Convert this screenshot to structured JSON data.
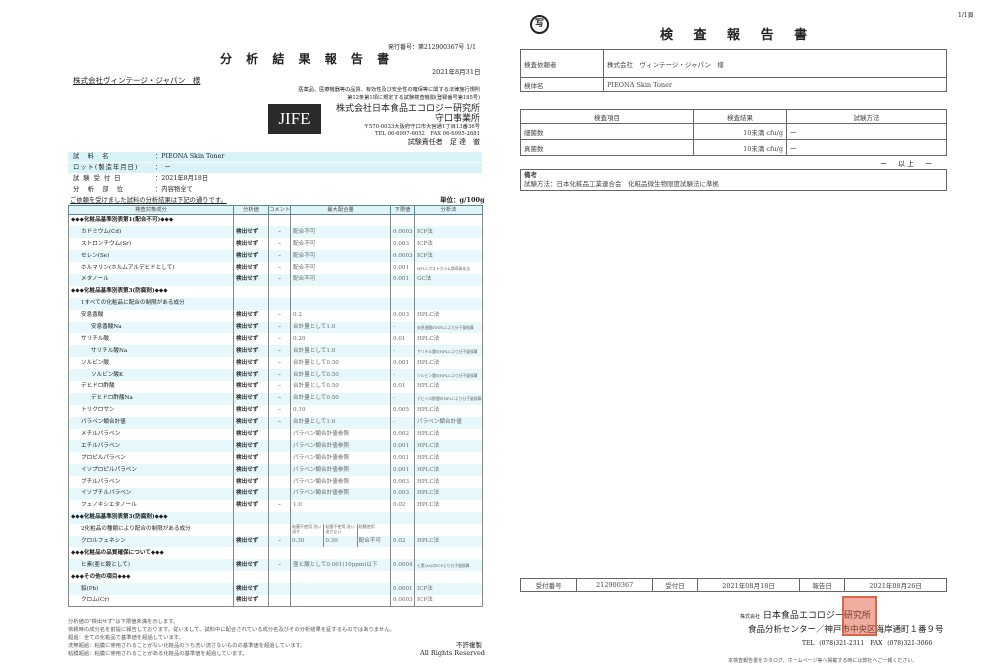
{
  "left": {
    "issue_no": "発行番号：第212900367号 1/1",
    "title": "分 析 結 果 報 告 書",
    "date": "2021年8月31日",
    "client": "株式会社ヴィンテージ・ジャパン　様",
    "law_line1": "医薬品、医療機器等の品質、有効性及び安全性の確保等に関する法律施行規則",
    "law_line2": "第12条第1項に規定する試験検査機関(登録番号第185号)",
    "logo_text": "JIFE",
    "lab_name": "株式会社日本食品エコロジー研究所",
    "lab_office": "守口事業所",
    "lab_address": "〒570-0033大阪府守口市大宮通1丁目13番36号",
    "lab_tel": "TEL 06-6997-6052　FAX 06-6995-2681",
    "lab_manager": "試験責任者　足 達　徹",
    "info": [
      {
        "key": "試　料　名",
        "value": "：PIEONA Skin Toner"
      },
      {
        "key": "ロット(製造年月日)",
        "value": "：　ー"
      },
      {
        "key": "試 験 受 付 日",
        "value": "：2021年8月18日"
      },
      {
        "key": "分　析　部　位",
        "value": "：内容物全て"
      }
    ],
    "intro": "ご依頼を受けました試料の分析結果は下記の通りです。",
    "unit": "単位：g/100g",
    "headers": [
      "検査対象成分",
      "分析値",
      "コメント",
      "最大配合量",
      "下限値",
      "分析法"
    ],
    "rows": [
      {
        "type": "section",
        "name": "◆◆◆化粧品基準別表第1(配合不可)◆◆◆"
      },
      {
        "name": "カドミウム(Cd)",
        "value": "検出せず",
        "comment": "–",
        "max": "配合不可",
        "limit": "0.0003",
        "method": "ICP法"
      },
      {
        "name": "ストロンチウム(Sr)",
        "value": "検出せず",
        "comment": "–",
        "max": "配合不可",
        "limit": "0.003",
        "method": "ICP法"
      },
      {
        "name": "セレン(Se)",
        "value": "検出せず",
        "comment": "–",
        "max": "配合不可",
        "limit": "0.0003",
        "method": "ICP法"
      },
      {
        "name": "ホルマリン(ホルムアルデヒドとして)",
        "value": "検出せず",
        "comment": "–",
        "max": "配合不可",
        "limit": "0.001",
        "method": "HPLCポストカラム誘導体化法",
        "small": true
      },
      {
        "name": "メタノール",
        "value": "検出せず",
        "comment": "–",
        "max": "配合不可",
        "limit": "0.001",
        "method": "GC法"
      },
      {
        "type": "section",
        "name": "◆◆◆化粧品基準別表第3(防腐剤)◆◆◆"
      },
      {
        "type": "sub",
        "name": "1すべての化粧品に配合の制限がある成分"
      },
      {
        "name": "安息香酸",
        "value": "検出せず",
        "comment": "–",
        "max": "0.2",
        "limit": "0.003",
        "method": "HPLC法"
      },
      {
        "name": "安息香酸Na",
        "indent": true,
        "value": "検出せず",
        "comment": "–",
        "max": "合計量として1.0",
        "limit": "-",
        "method": "安息香酸のHPLCより分子量換算",
        "small": true
      },
      {
        "name": "サリチル酸",
        "value": "検出せず",
        "comment": "–",
        "max": "0.20",
        "limit": "0.01",
        "method": "HPLC法"
      },
      {
        "name": "サリチル酸Na",
        "indent": true,
        "value": "検出せず",
        "comment": "–",
        "max": "合計量として1.0",
        "limit": "-",
        "method": "サリチル酸のHPLCより分子量換算",
        "small": true
      },
      {
        "name": "ソルビン酸",
        "value": "検出せず",
        "comment": "–",
        "max": "合計量として0.50",
        "limit": "0.001",
        "method": "HPLC法"
      },
      {
        "name": "ソルビン酸K",
        "indent": true,
        "value": "検出せず",
        "comment": "–",
        "max": "合計量として0.50",
        "limit": "-",
        "method": "ソルビン酸のHPLCより分子量換算",
        "small": true
      },
      {
        "name": "デヒドロ酢酸",
        "value": "検出せず",
        "comment": "–",
        "max": "合計量として0.50",
        "limit": "0.01",
        "method": "HPLC法"
      },
      {
        "name": "デヒドロ酢酸Na",
        "indent": true,
        "value": "検出せず",
        "comment": "–",
        "max": "合計量として0.50",
        "limit": "-",
        "method": "デヒドロ酢酸のHPLCより分子量換算",
        "small": true
      },
      {
        "name": "トリクロサン",
        "value": "検出せず",
        "comment": "–",
        "max": "0.10",
        "limit": "0.005",
        "method": "HPLC法"
      },
      {
        "name": "パラベン類合計値",
        "value": "検出せず",
        "comment": "–",
        "max": "合計量として1.0",
        "limit": "-",
        "method": "パラベン類合計値"
      },
      {
        "name": "メチルパラベン",
        "value": "検出せず",
        "comment": "",
        "max": "パラベン類合計値参照",
        "limit": "0.002",
        "method": "HPLC法"
      },
      {
        "name": "エチルパラベン",
        "value": "検出せず",
        "comment": "",
        "max": "パラベン類合計値参照",
        "limit": "0.001",
        "method": "HPLC法"
      },
      {
        "name": "プロピルパラベン",
        "value": "検出せず",
        "comment": "",
        "max": "パラベン類合計値参照",
        "limit": "0.001",
        "method": "HPLC法"
      },
      {
        "name": "イソプロピルパラベン",
        "value": "検出せず",
        "comment": "",
        "max": "パラベン類合計値参照",
        "limit": "0.001",
        "method": "HPLC法"
      },
      {
        "name": "ブチルパラベン",
        "value": "検出せず",
        "comment": "",
        "max": "パラベン類合計値参照",
        "limit": "0.003",
        "method": "HPLC法"
      },
      {
        "name": "イソブチルパラベン",
        "value": "検出せず",
        "comment": "",
        "max": "パラベン類合計値参照",
        "limit": "0.003",
        "method": "HPLC法"
      },
      {
        "name": "フェノキシエタノール",
        "value": "検出せず",
        "comment": "–",
        "max": "1.0",
        "limit": "0.02",
        "method": "HPLC法"
      },
      {
        "type": "section",
        "name": "◆◆◆化粧品基準別表第3(防腐剤)◆◆◆"
      },
      {
        "type": "sub",
        "name": "2化粧品の種類により配合の制限がある成分",
        "max_split": [
          "粘膜不使用 洗い流す",
          "粘膜不使用 洗い流さない",
          "粘膜使用"
        ]
      },
      {
        "name": "クロルフェネシン",
        "value": "検出せず",
        "comment": "–",
        "max_split": [
          "0.30",
          "0.30",
          "配合不可"
        ],
        "limit": "0.02",
        "method": "HPLC法"
      },
      {
        "type": "section",
        "name": "◆◆◆化粧品の品質確保について◆◆◆"
      },
      {
        "name": "ヒ素(亜ヒ酸として)",
        "value": "検出せず",
        "comment": "–",
        "max": "亜ヒ酸として0.001(10ppm)以下",
        "limit": "0.0004",
        "method": "ヒ素(As)のICPより分子量換算",
        "small": true
      },
      {
        "type": "section",
        "name": "◆◆◆その他の項目◆◆◆"
      },
      {
        "name": "鉛(Pb)",
        "value": "検出せず",
        "comment": "",
        "max": "",
        "limit": "0.0001",
        "method": "ICP法"
      },
      {
        "name": "クロム(Cr)",
        "value": "検出せず",
        "comment": "",
        "max": "",
        "limit": "0.0003",
        "method": "ICP法"
      }
    ],
    "notes": [
      "分析値の\"検出せず\"は下限値未満を示します。",
      "依頼時の成分名を前提に報告しております。従いまして、試料中に配合されている成分名及びその分析結果を証するものではありません。",
      "超過：全ての化粧品で基準値を超過しています。",
      "洗無超過：粘膜に使用されることがない化粧品のうち洗い流さないものの基準値を超過しています。",
      "粘膜超過：粘膜に使用されることがある化粧品の基準値を超過しています。"
    ],
    "no_copy": "不許複製",
    "rights": "All Rights Reserved"
  },
  "right": {
    "page_no": "1/1頁",
    "copy_mark": "写",
    "title": "検 査 報 告 書",
    "requester_label": "検査依頼者",
    "requester": "株式会社　ヴィンテージ・ジャパン　様",
    "sample_label": "検体名",
    "sample": "PIEONA Skin Toner",
    "result_headers": [
      "検査項目",
      "検査結果",
      "試験方法"
    ],
    "results": [
      {
        "item": "細菌数",
        "result": "10未満 cfu/g",
        "method": "ー"
      },
      {
        "item": "真菌数",
        "result": "10未満 cfu/g",
        "method": "ー"
      }
    ],
    "end": "ー　以上　ー",
    "remarks_label": "備考",
    "remarks": "試験方法：日本化粧品工業連合会　化粧品微生物限度試験法に準拠",
    "receipt_no_label": "受付番号",
    "receipt_no": "212900367",
    "receipt_date_label": "受付日",
    "receipt_date": "2021年08月18日",
    "report_date_label": "報告日",
    "report_date": "2021年08月26日",
    "company_prefix": "株式会社",
    "company": "日本食品エコロジー研究所",
    "center": "食品分析センター／神戸市中央区海岸通町１番９号",
    "tel": "TEL (078)321-2311　FAX (078)321-3066",
    "disclaimer": "本検査報告書をカタログ、ホームページ等へ掲載する時には弊社へご一報ください。",
    "seal_color": "#d64a2a"
  }
}
